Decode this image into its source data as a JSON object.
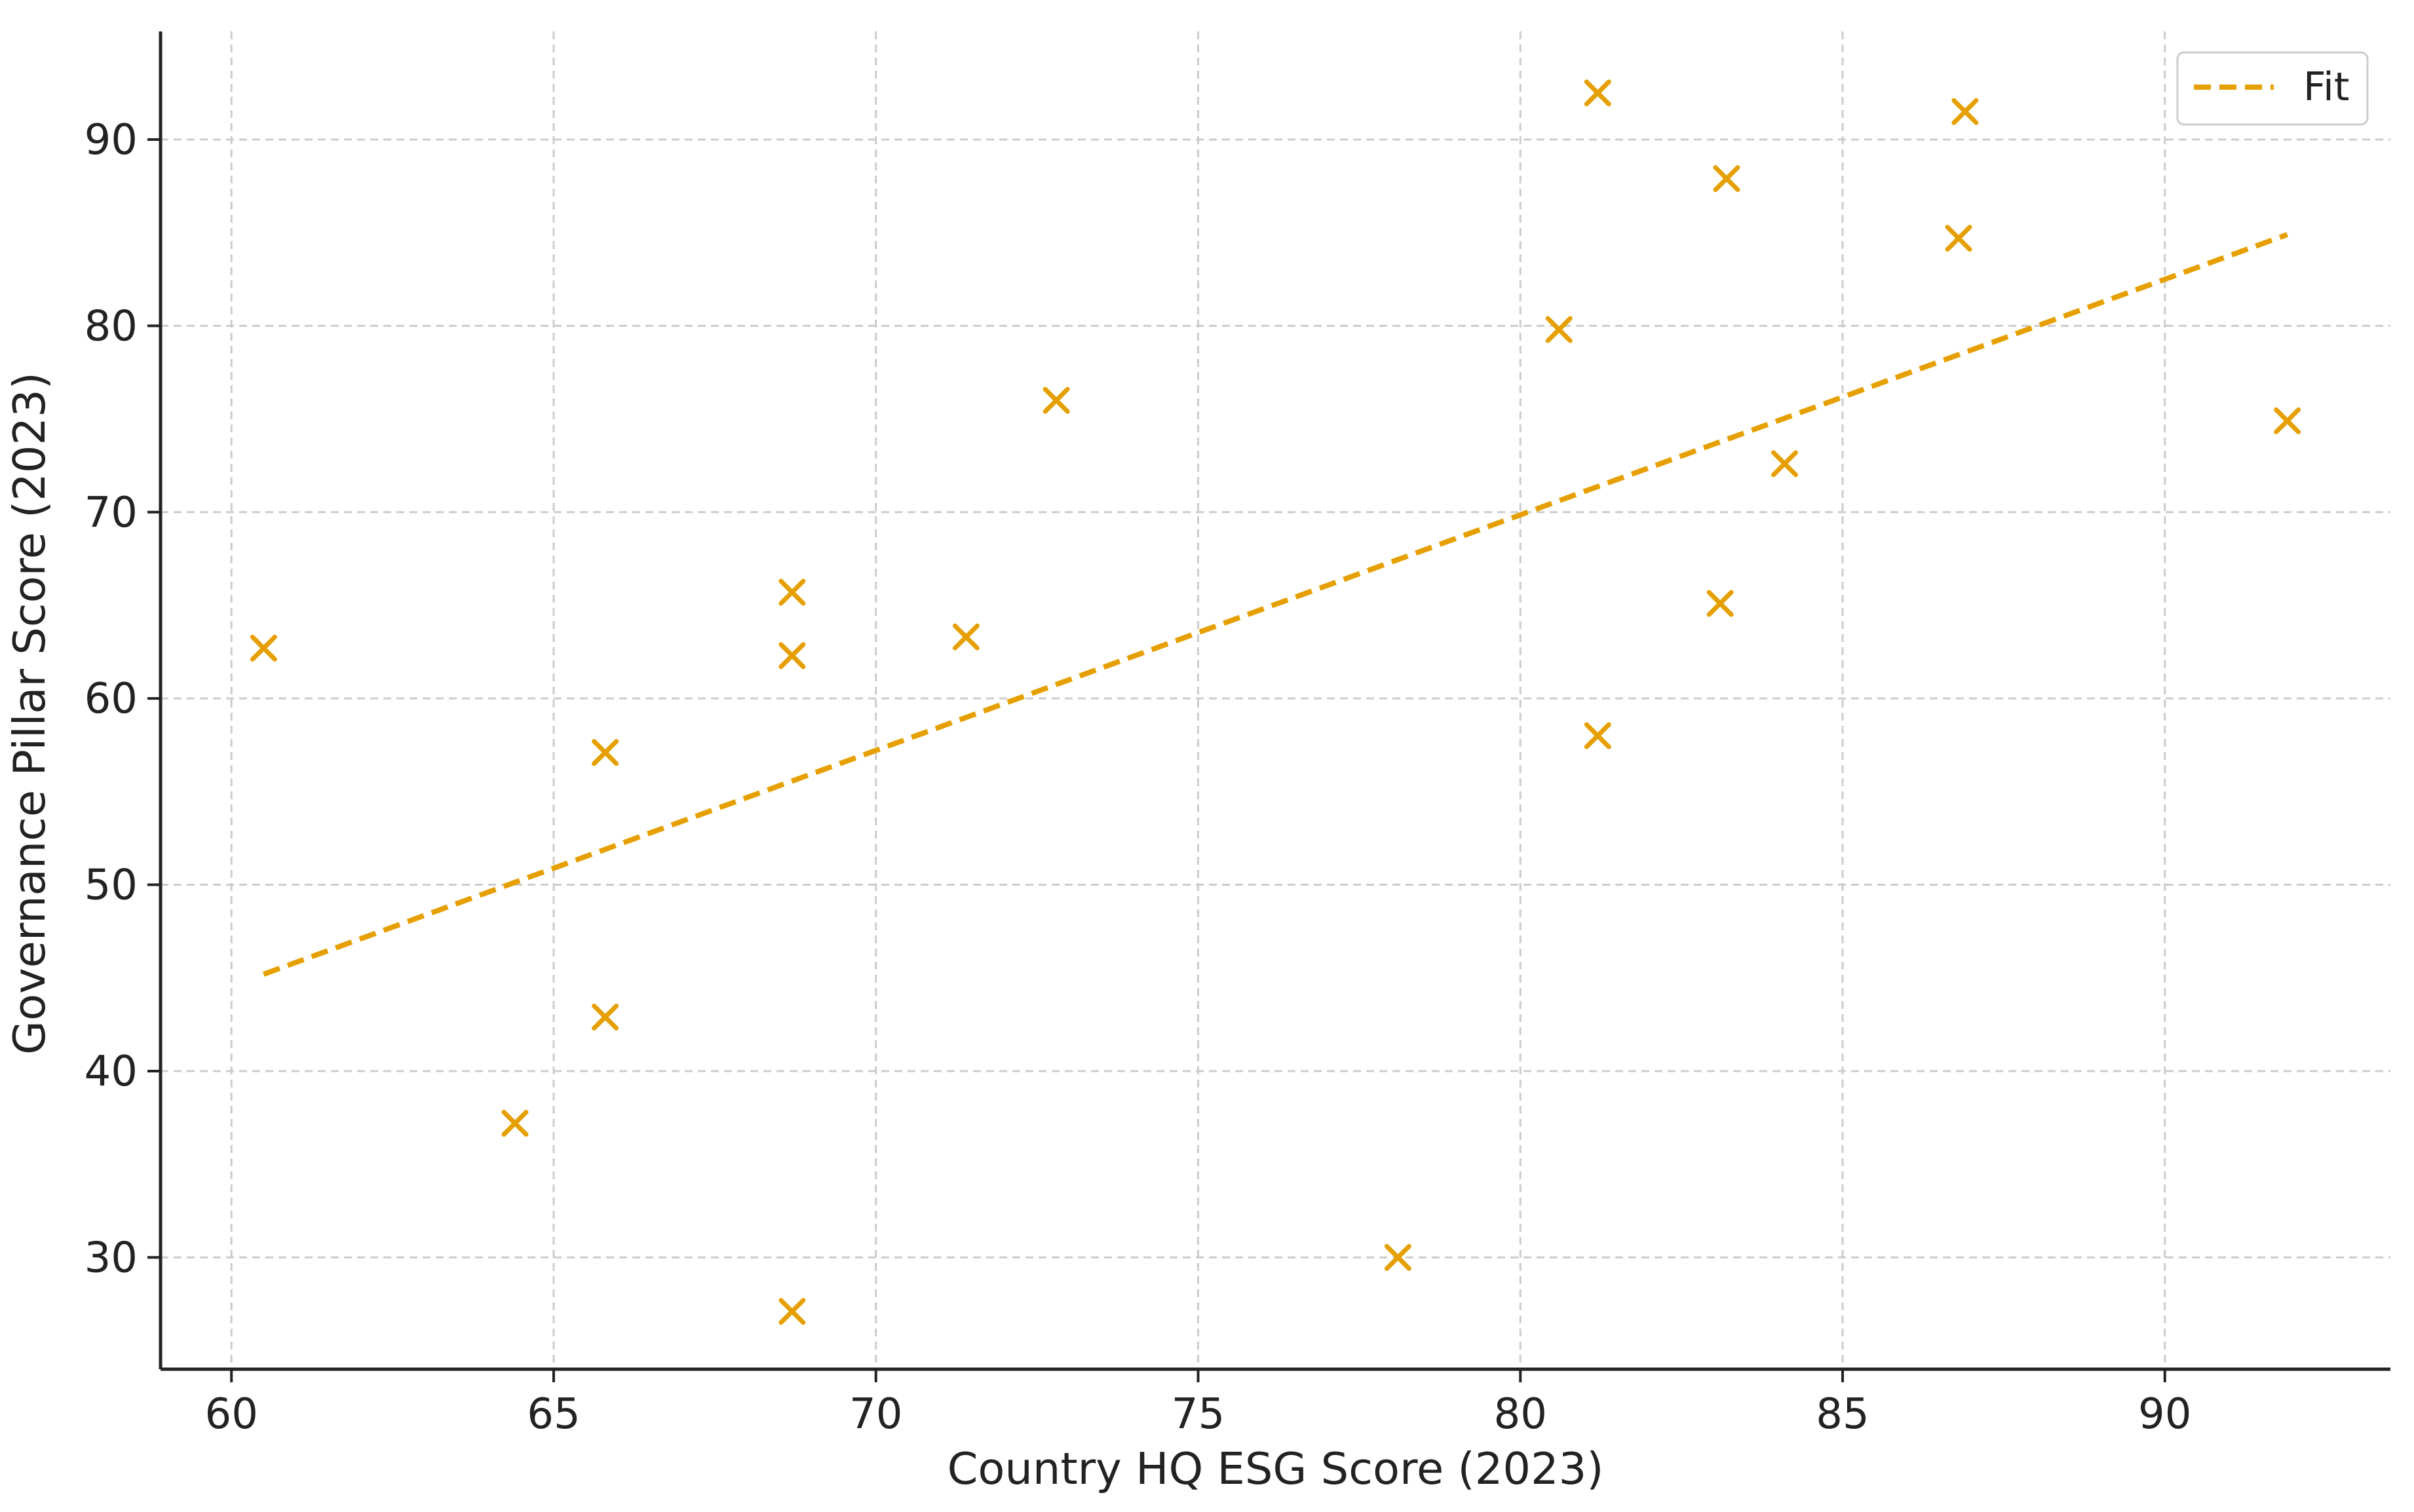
{
  "chart_data": {
    "type": "scatter",
    "title": "",
    "xlabel": "Country HQ ESG Score (2023)",
    "ylabel": "Governance Pillar Score (2023)",
    "xlim": [
      58.9,
      93.5
    ],
    "ylim": [
      24.0,
      95.8
    ],
    "xticks": [
      60,
      65,
      70,
      75,
      80,
      85,
      90
    ],
    "yticks": [
      30,
      40,
      50,
      60,
      70,
      80,
      90
    ],
    "grid": true,
    "legend": {
      "placement": "top-right",
      "entries": [
        "Fit"
      ]
    },
    "colors": {
      "points": "#E69F00",
      "fit": "#E69F00",
      "grid": "#cccccc",
      "axis": "#222222"
    },
    "marker": "x",
    "series": [
      {
        "kind": "points",
        "values": [
          {
            "x": 60.5,
            "y": 62.7
          },
          {
            "x": 64.4,
            "y": 37.2
          },
          {
            "x": 65.8,
            "y": 57.1
          },
          {
            "x": 65.8,
            "y": 42.9
          },
          {
            "x": 68.7,
            "y": 65.7
          },
          {
            "x": 68.7,
            "y": 62.3
          },
          {
            "x": 68.7,
            "y": 27.1
          },
          {
            "x": 71.4,
            "y": 63.3
          },
          {
            "x": 72.8,
            "y": 76.0
          },
          {
            "x": 78.1,
            "y": 30.0
          },
          {
            "x": 80.6,
            "y": 79.8
          },
          {
            "x": 81.2,
            "y": 92.5
          },
          {
            "x": 81.2,
            "y": 58.0
          },
          {
            "x": 83.1,
            "y": 65.1
          },
          {
            "x": 83.2,
            "y": 87.9
          },
          {
            "x": 84.1,
            "y": 72.6
          },
          {
            "x": 86.8,
            "y": 84.7
          },
          {
            "x": 86.9,
            "y": 91.5
          },
          {
            "x": 91.9,
            "y": 74.9
          }
        ]
      },
      {
        "name": "Fit",
        "kind": "fit-line",
        "values": [
          {
            "x": 60.5,
            "y": 45.2
          },
          {
            "x": 91.9,
            "y": 84.9
          }
        ]
      }
    ]
  }
}
